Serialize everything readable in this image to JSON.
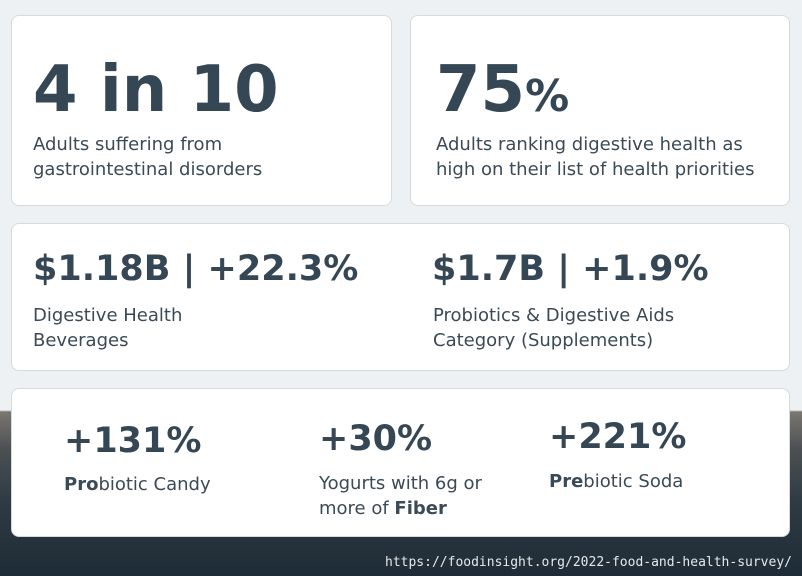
{
  "cards": {
    "adults_gi": {
      "stat": "4 in 10",
      "desc_line1": "Adults suffering from",
      "desc_line2": "gastrointestinal disorders"
    },
    "digestive_priority": {
      "stat_number": "75",
      "stat_suffix": "%",
      "desc_line1": "Adults ranking digestive health as",
      "desc_line2": "high on their list of health priorities"
    },
    "beverages": {
      "stat": "$1.18B | +22.3%",
      "desc_line1": "Digestive Health",
      "desc_line2": "Beverages"
    },
    "probiotics": {
      "stat": "$1.7B | +1.9%",
      "desc_line1": "Probiotics & Digestive Aids",
      "desc_line2": "Category (Supplements)"
    },
    "candy": {
      "stat": "+131%",
      "label_bold": "Pro",
      "label_rest": "biotic Candy"
    },
    "yogurt": {
      "stat": "+30%",
      "desc_line1": "Yogurts with 6g or",
      "desc_line2_prefix": "more of ",
      "desc_line2_bold": "Fiber"
    },
    "soda": {
      "stat": "+221%",
      "label_bold": "Pre",
      "label_rest": "biotic Soda"
    }
  },
  "source_url": "https://foodinsight.org/2022-food-and-health-survey/",
  "colors": {
    "stat_text": "#354754",
    "card_bg": "#ffffff",
    "page_bg": "#eef1f3"
  }
}
